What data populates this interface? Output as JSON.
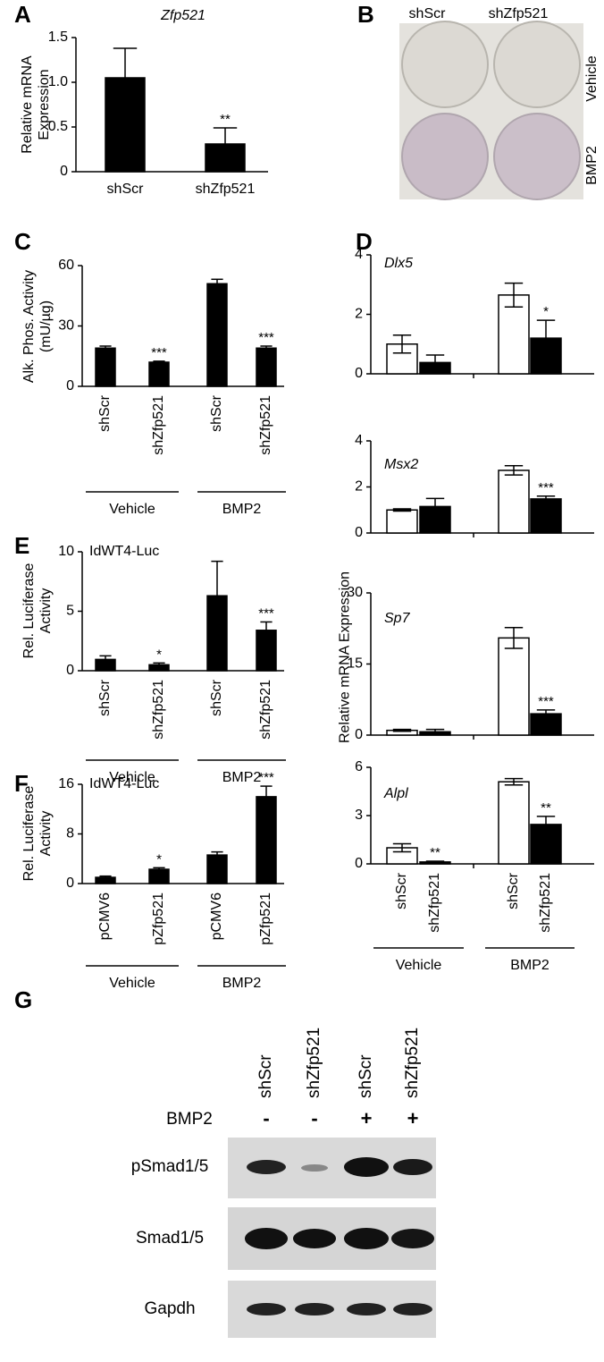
{
  "chart_data": [
    {
      "type": "bar",
      "panel": "A",
      "title": "Zfp521",
      "y_label": "Relative mRNA Expression",
      "categories": [
        "shScr",
        "shZfp521"
      ],
      "values": [
        1.05,
        0.31
      ],
      "errors": [
        0.33,
        0.18
      ],
      "significance": [
        null,
        "**"
      ],
      "color": "#000000",
      "ylim": [
        0,
        1.5
      ],
      "yticks": [
        0,
        0.5,
        {
          "value": 1,
          "label": "1.0"
        },
        1.5
      ]
    },
    {
      "type": "image",
      "panel": "B",
      "columns": [
        "shScr",
        "shZfp521"
      ],
      "rows": [
        "Vehicle",
        "BMP2"
      ]
    },
    {
      "type": "bar",
      "panel": "C",
      "y_label": "Alk. Phos. Activity (mU/µg)",
      "categories": [
        "shScr",
        "shZfp521",
        "shScr",
        "shZfp521"
      ],
      "groups": [
        "Vehicle",
        "BMP2"
      ],
      "values": [
        19,
        12,
        51,
        19
      ],
      "errors": [
        1,
        0.5,
        2.2,
        1
      ],
      "significance": [
        null,
        "***",
        null,
        "***"
      ],
      "color": "#000000",
      "ylim": [
        0,
        60
      ],
      "yticks": [
        0,
        30,
        60
      ]
    },
    {
      "type": "grouped_bar",
      "panel": "D",
      "y_label": "Relative mRNA Expression",
      "categories": [
        "shScr",
        "shZfp521",
        "shScr",
        "shZfp521"
      ],
      "groups": [
        "Vehicle",
        "BMP2"
      ],
      "bar_colors": [
        "#ffffff",
        "#000000",
        "#ffffff",
        "#000000"
      ],
      "subcharts": [
        {
          "title": "Dlx5",
          "values": [
            1.0,
            0.38,
            2.65,
            1.2
          ],
          "errors": [
            0.3,
            0.25,
            0.4,
            0.6
          ],
          "significance": [
            null,
            null,
            null,
            "*"
          ],
          "ylim": [
            0,
            4
          ],
          "yticks": [
            0,
            2,
            4
          ]
        },
        {
          "title": "Msx2",
          "values": [
            1.0,
            1.15,
            2.72,
            1.48
          ],
          "errors": [
            0.05,
            0.35,
            0.2,
            0.12
          ],
          "significance": [
            null,
            null,
            null,
            "***"
          ],
          "ylim": [
            0,
            4
          ],
          "yticks": [
            0,
            2,
            4
          ]
        },
        {
          "title": "Sp7",
          "values": [
            1.0,
            0.7,
            20.5,
            4.5
          ],
          "errors": [
            0.2,
            0.5,
            2.2,
            0.8
          ],
          "significance": [
            null,
            null,
            null,
            "***"
          ],
          "ylim": [
            0,
            30
          ],
          "yticks": [
            0,
            15,
            30
          ]
        },
        {
          "title": "Alpl",
          "values": [
            1.0,
            0.12,
            5.1,
            2.45
          ],
          "errors": [
            0.25,
            0.05,
            0.2,
            0.5
          ],
          "significance": [
            null,
            "**",
            null,
            "**"
          ],
          "ylim": [
            0,
            6
          ],
          "yticks": [
            0,
            3,
            6
          ]
        }
      ]
    },
    {
      "type": "bar",
      "panel": "E",
      "title": "IdWT4-Luc",
      "y_label": "Rel. Luciferase Activity",
      "categories": [
        "shScr",
        "shZfp521",
        "shScr",
        "shZfp521"
      ],
      "groups": [
        "Vehicle",
        "BMP2"
      ],
      "values": [
        0.95,
        0.5,
        6.3,
        3.4
      ],
      "errors": [
        0.3,
        0.15,
        2.9,
        0.7
      ],
      "significance": [
        null,
        "*",
        null,
        "***"
      ],
      "color": "#000000",
      "ylim": [
        0,
        10
      ],
      "yticks": [
        0,
        5,
        10
      ]
    },
    {
      "type": "bar",
      "panel": "F",
      "title": "IdWT4-Luc",
      "y_label": "Rel. Luciferase Activity",
      "categories": [
        "pCMV6",
        "pZfp521",
        "pCMV6",
        "pZfp521"
      ],
      "groups": [
        "Vehicle",
        "BMP2"
      ],
      "values": [
        1.0,
        2.3,
        4.6,
        14.0
      ],
      "errors": [
        0.2,
        0.25,
        0.5,
        1.7
      ],
      "significance": [
        null,
        "*",
        null,
        "***"
      ],
      "color": "#000000",
      "ylim": [
        0,
        16
      ],
      "yticks": [
        0,
        8,
        16
      ]
    },
    {
      "type": "western_blot",
      "panel": "G",
      "columns": [
        "shScr",
        "shZfp521",
        "shScr",
        "shZfp521"
      ],
      "treatment": {
        "label": "BMP2",
        "values": [
          "-",
          "-",
          "+",
          "+"
        ]
      },
      "rows": [
        "pSmad1/5",
        "Smad1/5",
        "Gapdh"
      ]
    }
  ]
}
